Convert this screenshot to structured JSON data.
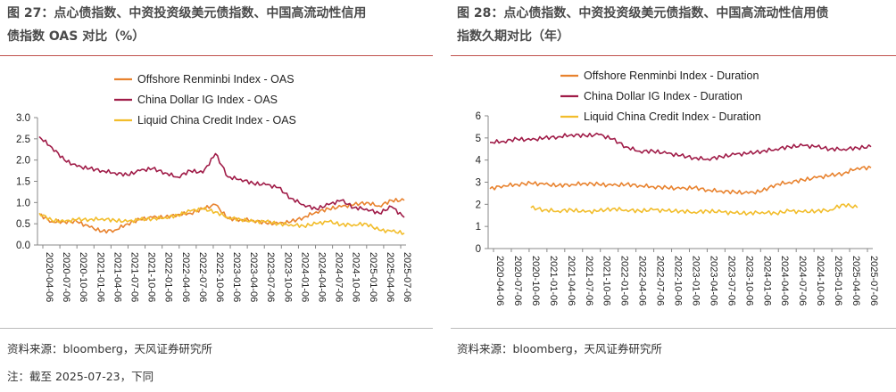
{
  "left": {
    "title_line1": "图 27：点心债指数、中资投资级美元债指数、中国高流动性信用",
    "title_line2": "债指数 OAS 对比（%）",
    "source": "资料来源：bloomberg，天风证券研究所"
  },
  "right": {
    "title_line1": "图 28：点心债指数、中资投资级美元债指数、中国高流动性信用债",
    "title_line2": "指数久期对比（年）",
    "source": "资料来源：bloomberg，天风证券研究所"
  },
  "note": "注：截至 2025-07-23，下同",
  "colors": {
    "orange": "#e8822e",
    "maroon": "#a01c48",
    "yellow": "#f2bd2b",
    "accent": "#c0504d"
  },
  "chart_data": [
    {
      "type": "line",
      "title": "点心债指数、中资投资级美元债指数、中国高流动性信用债指数 OAS 对比（%）",
      "ylim": [
        0,
        3
      ],
      "yticks": [
        "0.0",
        "0.5",
        "1.0",
        "1.5",
        "2.0",
        "2.5",
        "3.0"
      ],
      "x_ticks": [
        "2020-04-06",
        "2020-07-06",
        "2020-10-06",
        "2021-01-06",
        "2021-04-06",
        "2021-07-06",
        "2021-10-06",
        "2022-01-06",
        "2022-04-06",
        "2022-07-06",
        "2022-10-06",
        "2023-01-06",
        "2023-04-06",
        "2023-07-06",
        "2023-10-06",
        "2024-01-06",
        "2024-04-06",
        "2024-07-06",
        "2024-10-06",
        "2025-01-06",
        "2025-04-06",
        "2025-07-06"
      ],
      "series": [
        {
          "name": "Offshore Renminbi Index - OAS",
          "color": "#e8822e",
          "start": 0,
          "values": [
            0.72,
            0.55,
            0.55,
            0.55,
            0.42,
            0.32,
            0.35,
            0.5,
            0.6,
            0.65,
            0.65,
            0.72,
            0.75,
            0.85,
            0.95,
            0.62,
            0.6,
            0.58,
            0.52,
            0.5,
            0.55,
            0.65,
            0.78,
            0.85,
            0.9,
            0.95,
            1.0,
            0.92,
            1.05,
            1.05
          ]
        },
        {
          "name": "China Dollar IG Index - OAS",
          "color": "#a01c48",
          "start": 0,
          "values": [
            2.55,
            2.3,
            2.0,
            1.85,
            1.8,
            1.75,
            1.7,
            1.65,
            1.75,
            1.8,
            1.7,
            1.6,
            1.75,
            1.7,
            2.15,
            1.6,
            1.55,
            1.45,
            1.42,
            1.35,
            1.1,
            0.95,
            0.85,
            0.95,
            1.05,
            0.88,
            0.85,
            0.75,
            0.9,
            0.65
          ]
        },
        {
          "name": "Liquid China Credit Index - OAS",
          "color": "#f2bd2b",
          "start": 0,
          "values": [
            0.75,
            0.58,
            0.55,
            0.6,
            0.6,
            0.62,
            0.58,
            0.55,
            0.6,
            0.62,
            0.65,
            0.7,
            0.8,
            0.85,
            0.78,
            0.65,
            0.6,
            0.55,
            0.55,
            0.5,
            0.48,
            0.45,
            0.5,
            0.55,
            0.48,
            0.48,
            0.5,
            0.35,
            0.32,
            0.28
          ]
        }
      ]
    },
    {
      "type": "line",
      "title": "点心债指数、中资投资级美元债指数、中国高流动性信用债指数久期对比（年）",
      "ylim": [
        0,
        6
      ],
      "yticks": [
        "0",
        "1",
        "2",
        "3",
        "4",
        "5",
        "6"
      ],
      "x_ticks": [
        "2020-04-06",
        "2020-07-06",
        "2020-10-06",
        "2021-01-06",
        "2021-04-06",
        "2021-07-06",
        "2021-10-06",
        "2022-01-06",
        "2022-04-06",
        "2022-07-06",
        "2022-10-06",
        "2023-01-06",
        "2023-04-06",
        "2023-07-06",
        "2023-10-06",
        "2024-01-06",
        "2024-04-06",
        "2024-07-06",
        "2024-10-06",
        "2025-01-06",
        "2025-04-06",
        "2025-07-06"
      ],
      "series": [
        {
          "name": "Offshore Renminbi Index - Duration",
          "color": "#e8822e",
          "start": 0,
          "values": [
            2.7,
            2.85,
            2.9,
            2.95,
            2.9,
            2.85,
            2.9,
            2.95,
            2.9,
            2.85,
            2.9,
            2.85,
            2.8,
            2.75,
            2.7,
            2.75,
            2.65,
            2.6,
            2.55,
            2.5,
            2.6,
            2.9,
            3.0,
            3.1,
            3.2,
            3.3,
            3.4,
            3.65,
            3.65
          ]
        },
        {
          "name": "China Dollar IG Index - Duration",
          "color": "#a01c48",
          "start": 0,
          "values": [
            4.8,
            4.85,
            4.95,
            4.9,
            5.0,
            5.05,
            5.15,
            5.1,
            5.15,
            4.95,
            4.6,
            4.4,
            4.4,
            4.3,
            4.2,
            4.1,
            4.05,
            4.15,
            4.25,
            4.3,
            4.4,
            4.5,
            4.6,
            4.65,
            4.6,
            4.5,
            4.5,
            4.55,
            4.6
          ]
        },
        {
          "name": "Liquid China Credit Index - Duration",
          "color": "#f2bd2b",
          "start": 3,
          "values": [
            1.85,
            1.75,
            1.7,
            1.75,
            1.65,
            1.7,
            1.8,
            1.75,
            1.7,
            1.75,
            1.7,
            1.7,
            1.65,
            1.7,
            1.65,
            1.6,
            1.6,
            1.65,
            1.6,
            1.7,
            1.65,
            1.7,
            1.75,
            2.0,
            1.85
          ]
        }
      ]
    }
  ]
}
